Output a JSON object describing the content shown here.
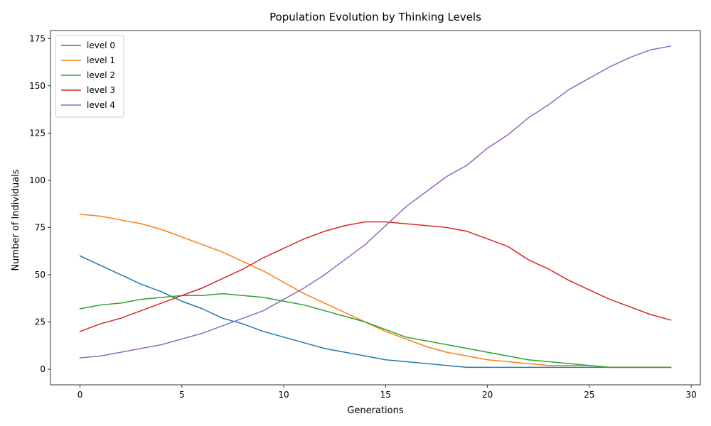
{
  "chart_data": {
    "type": "line",
    "title": "Population Evolution by Thinking Levels",
    "xlabel": "Generations",
    "ylabel": "Number of Individuals",
    "xlim": [
      -1.45,
      30.45
    ],
    "ylim": [
      -8.25,
      179.25
    ],
    "xticks": [
      0,
      5,
      10,
      15,
      20,
      25,
      30
    ],
    "yticks": [
      0,
      25,
      50,
      75,
      100,
      125,
      150,
      175
    ],
    "grid": false,
    "legend_position": "top-left",
    "x": [
      0,
      1,
      2,
      3,
      4,
      5,
      6,
      7,
      8,
      9,
      10,
      11,
      12,
      13,
      14,
      15,
      16,
      17,
      18,
      19,
      20,
      21,
      22,
      23,
      24,
      25,
      26,
      27,
      28,
      29
    ],
    "series": [
      {
        "name": "level 0",
        "color": "#1f77b4",
        "values": [
          60,
          55,
          50,
          45,
          41,
          36,
          32,
          27,
          24,
          20,
          17,
          14,
          11,
          9,
          7,
          5,
          4,
          3,
          2,
          1,
          1,
          1,
          1,
          1,
          1,
          1,
          1,
          1,
          1,
          1
        ]
      },
      {
        "name": "level 1",
        "color": "#ff7f0e",
        "values": [
          82,
          81,
          79,
          77,
          74,
          70,
          66,
          62,
          57,
          52,
          46,
          40,
          35,
          30,
          25,
          20,
          16,
          12,
          9,
          7,
          5,
          4,
          3,
          2,
          2,
          2,
          1,
          1,
          1,
          1
        ]
      },
      {
        "name": "level 2",
        "color": "#2ca02c",
        "values": [
          32,
          34,
          35,
          37,
          38,
          39,
          39,
          40,
          39,
          38,
          36,
          34,
          31,
          28,
          25,
          21,
          17,
          15,
          13,
          11,
          9,
          7,
          5,
          4,
          3,
          2,
          1,
          1,
          1,
          1
        ]
      },
      {
        "name": "level 3",
        "color": "#d62728",
        "values": [
          20,
          24,
          27,
          31,
          35,
          39,
          43,
          48,
          53,
          59,
          64,
          69,
          73,
          76,
          78,
          78,
          77,
          76,
          75,
          73,
          69,
          65,
          58,
          53,
          47,
          42,
          37,
          33,
          29,
          26
        ]
      },
      {
        "name": "level 4",
        "color": "#9467bd",
        "values": [
          6,
          7,
          9,
          11,
          13,
          16,
          19,
          23,
          27,
          31,
          37,
          43,
          50,
          58,
          66,
          76,
          86,
          94,
          102,
          108,
          117,
          124,
          133,
          140,
          148,
          154,
          160,
          165,
          169,
          171
        ]
      }
    ]
  }
}
